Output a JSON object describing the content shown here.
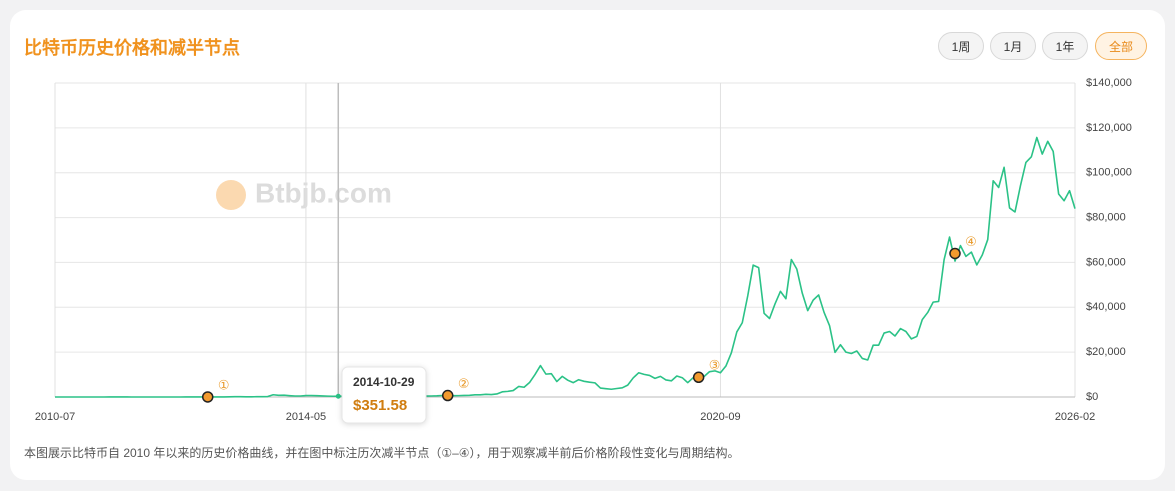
{
  "chart_data": {
    "type": "line",
    "title": "比特币历史价格和减半节点",
    "buttons": [
      "1周",
      "1月",
      "1年",
      "全部"
    ],
    "active_button": 3,
    "watermark": "Btbjb.com",
    "note": "本图展示比特币自 2010 年以来的历史价格曲线，并在图中标注历次减半节点（①–④），用于观察减半前后价格阶段性变化与周期结构。",
    "x": [
      "2010-07",
      "2010-08",
      "2010-09",
      "2010-10",
      "2010-11",
      "2010-12",
      "2011-01",
      "2011-02",
      "2011-03",
      "2011-04",
      "2011-05",
      "2011-06",
      "2011-07",
      "2011-08",
      "2011-09",
      "2011-10",
      "2011-11",
      "2011-12",
      "2012-01",
      "2012-02",
      "2012-03",
      "2012-04",
      "2012-05",
      "2012-06",
      "2012-07",
      "2012-08",
      "2012-09",
      "2012-10",
      "2012-11",
      "2012-12",
      "2013-01",
      "2013-02",
      "2013-03",
      "2013-04",
      "2013-05",
      "2013-06",
      "2013-07",
      "2013-08",
      "2013-09",
      "2013-10",
      "2013-11",
      "2013-12",
      "2014-01",
      "2014-02",
      "2014-03",
      "2014-04",
      "2014-05",
      "2014-06",
      "2014-07",
      "2014-08",
      "2014-09",
      "2014-10",
      "2014-11",
      "2014-12",
      "2015-01",
      "2015-02",
      "2015-03",
      "2015-04",
      "2015-05",
      "2015-06",
      "2015-07",
      "2015-08",
      "2015-09",
      "2015-10",
      "2015-11",
      "2015-12",
      "2016-01",
      "2016-02",
      "2016-03",
      "2016-04",
      "2016-05",
      "2016-06",
      "2016-07",
      "2016-08",
      "2016-09",
      "2016-10",
      "2016-11",
      "2016-12",
      "2017-01",
      "2017-02",
      "2017-03",
      "2017-04",
      "2017-05",
      "2017-06",
      "2017-07",
      "2017-08",
      "2017-09",
      "2017-10",
      "2017-11",
      "2017-12",
      "2018-01",
      "2018-02",
      "2018-03",
      "2018-04",
      "2018-05",
      "2018-06",
      "2018-07",
      "2018-08",
      "2018-09",
      "2018-10",
      "2018-11",
      "2018-12",
      "2019-01",
      "2019-02",
      "2019-03",
      "2019-04",
      "2019-05",
      "2019-06",
      "2019-07",
      "2019-08",
      "2019-09",
      "2019-10",
      "2019-11",
      "2019-12",
      "2020-01",
      "2020-02",
      "2020-03",
      "2020-04",
      "2020-05",
      "2020-06",
      "2020-07",
      "2020-08",
      "2020-09",
      "2020-10",
      "2020-11",
      "2020-12",
      "2021-01",
      "2021-02",
      "2021-03",
      "2021-04",
      "2021-05",
      "2021-06",
      "2021-07",
      "2021-08",
      "2021-09",
      "2021-10",
      "2021-11",
      "2021-12",
      "2022-01",
      "2022-02",
      "2022-03",
      "2022-04",
      "2022-05",
      "2022-06",
      "2022-07",
      "2022-08",
      "2022-09",
      "2022-10",
      "2022-11",
      "2022-12",
      "2023-01",
      "2023-02",
      "2023-03",
      "2023-04",
      "2023-05",
      "2023-06",
      "2023-07",
      "2023-08",
      "2023-09",
      "2023-10",
      "2023-11",
      "2023-12",
      "2024-01",
      "2024-02",
      "2024-03",
      "2024-04",
      "2024-05",
      "2024-06",
      "2024-07",
      "2024-08",
      "2024-09",
      "2024-10",
      "2024-11",
      "2024-12",
      "2025-01",
      "2025-02",
      "2025-03",
      "2025-04",
      "2025-05",
      "2025-06",
      "2025-07",
      "2025-08",
      "2025-09",
      "2025-10",
      "2025-11",
      "2025-12",
      "2026-01",
      "2026-02"
    ],
    "series": [
      {
        "name": "BTC",
        "color": "#2bc287",
        "values": [
          0.07,
          0.07,
          0.06,
          0.1,
          0.25,
          0.3,
          0.5,
          0.9,
          0.9,
          0.8,
          8,
          17,
          14,
          11,
          5,
          3,
          3,
          4.7,
          6,
          5,
          5,
          5,
          5,
          6,
          9,
          10,
          12,
          11,
          12,
          13,
          20,
          33,
          90,
          140,
          130,
          100,
          95,
          120,
          140,
          200,
          1000,
          750,
          800,
          600,
          450,
          450,
          620,
          630,
          580,
          480,
          390,
          340,
          375,
          320,
          220,
          250,
          245,
          235,
          230,
          260,
          285,
          230,
          235,
          315,
          380,
          430,
          370,
          435,
          415,
          450,
          530,
          670,
          625,
          575,
          610,
          700,
          745,
          960,
          970,
          1190,
          1080,
          1350,
          2300,
          2500,
          2870,
          4700,
          4340,
          6450,
          10000,
          14000,
          10200,
          10400,
          6900,
          9200,
          7500,
          6400,
          7700,
          7000,
          6600,
          6300,
          4000,
          3700,
          3450,
          3800,
          4100,
          5300,
          8500,
          10800,
          10100,
          9600,
          8300,
          9200,
          7600,
          7200,
          9350,
          8600,
          6400,
          8600,
          9450,
          9150,
          11300,
          11650,
          10800,
          13800,
          19700,
          29000,
          33100,
          45100,
          58800,
          57700,
          37300,
          35000,
          41500,
          47100,
          43800,
          61300,
          57000,
          46300,
          38500,
          43200,
          45500,
          37700,
          31800,
          19900,
          23300,
          20000,
          19400,
          20500,
          17200,
          16500,
          23100,
          23100,
          28500,
          29200,
          27200,
          30500,
          29200,
          25900,
          27000,
          34500,
          37700,
          42300,
          42600,
          61200,
          71300,
          60600,
          67500,
          62700,
          64600,
          58900,
          63300,
          70200,
          96400,
          93400,
          102400,
          84300,
          82500,
          94200,
          104600,
          107100,
          115700,
          108300,
          114000,
          109500,
          90500,
          87500,
          92000,
          84000
        ]
      }
    ],
    "halvings": [
      {
        "x": "2012-11",
        "value": 12,
        "label": "①"
      },
      {
        "x": "2016-07",
        "value": 650,
        "label": "②"
      },
      {
        "x": "2020-05",
        "value": 8800,
        "label": "③"
      },
      {
        "x": "2024-04",
        "value": 64000,
        "label": "④"
      }
    ],
    "hover": {
      "date": "2014-10-29",
      "value": 351.58,
      "value_label": "$351.58"
    },
    "xlim": [
      "2010-07",
      "2026-02"
    ],
    "xticks": [
      "2010-07",
      "2014-05",
      "2020-09",
      "2026-02"
    ],
    "ylim": [
      0,
      140000
    ],
    "yticks": [
      {
        "value": 0,
        "label": "$0"
      },
      {
        "value": 20000,
        "label": "$20,000"
      },
      {
        "value": 40000,
        "label": "$40,000"
      },
      {
        "value": 60000,
        "label": "$60,000"
      },
      {
        "value": 80000,
        "label": "$80,000"
      },
      {
        "value": 100000,
        "label": "$100,000"
      },
      {
        "value": 120000,
        "label": "$120,000"
      },
      {
        "value": 140000,
        "label": "$140,000"
      }
    ],
    "grid": true
  }
}
